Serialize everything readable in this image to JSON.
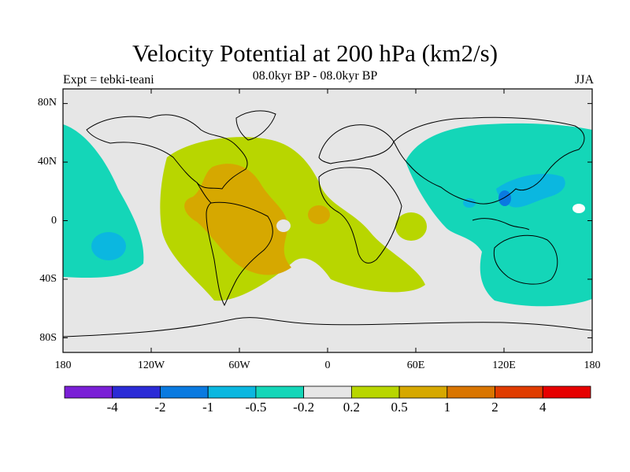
{
  "title": "Velocity Potential at 200 hPa (km2/s)",
  "subtitle": "08.0kyr BP - 08.0kyr BP",
  "experiment": "Expt = tebki-teani",
  "season": "JJA",
  "map": {
    "projection": "cylindrical-equidistant",
    "lon_range": [
      -180,
      180
    ],
    "lat_range": [
      -90,
      90
    ],
    "lat_ticks": [
      {
        "value": 80,
        "label": "80N"
      },
      {
        "value": 40,
        "label": "40N"
      },
      {
        "value": 0,
        "label": "0"
      },
      {
        "value": -40,
        "label": "40S"
      },
      {
        "value": -80,
        "label": "80S"
      }
    ],
    "lon_ticks": [
      {
        "value": -180,
        "label": "180"
      },
      {
        "value": -120,
        "label": "120W"
      },
      {
        "value": -60,
        "label": "60W"
      },
      {
        "value": 0,
        "label": "0"
      },
      {
        "value": 60,
        "label": "60E"
      },
      {
        "value": 120,
        "label": "120E"
      },
      {
        "value": 180,
        "label": "180"
      }
    ],
    "background_color": "#e6e6e6",
    "coastline_color": "#000000"
  },
  "colorbar": {
    "colors": [
      "#7a1fd6",
      "#2b2bd6",
      "#0a7ae0",
      "#0bb7e0",
      "#14d6b8",
      "#e6e6e6",
      "#b8d600",
      "#d6a800",
      "#d97500",
      "#e03c00",
      "#e60000"
    ],
    "labels": [
      "-4",
      "-2",
      "-1",
      "-0.5",
      "-0.2",
      "0.2",
      "0.5",
      "1",
      "2",
      "4"
    ]
  }
}
